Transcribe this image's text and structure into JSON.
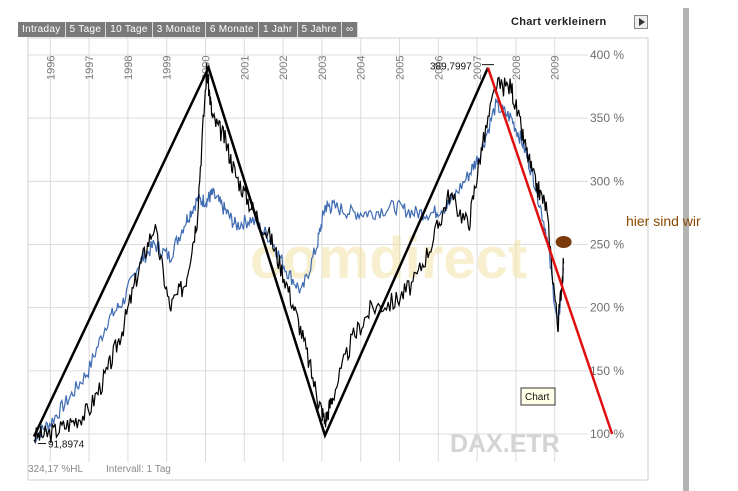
{
  "tabs": [
    "Intraday",
    "5 Tage",
    "10 Tage",
    "3 Monate",
    "6 Monate",
    "1 Jahr",
    "5 Jahre",
    "∞"
  ],
  "header": {
    "shrink_label": "Chart verkleinern"
  },
  "footer": {
    "performance": "324,17 %HL",
    "interval": "Intervall: 1 Tag"
  },
  "watermark": {
    "symbol": "DAX.ETR",
    "brand": "comdirect"
  },
  "tooltip": "Chart",
  "annotation": "hier sind wir",
  "colors": {
    "index_line": "#000000",
    "comparison_line": "#3f6bb2",
    "trend_lines": "#000000",
    "forecast_line": "#e01010",
    "marker": "#7a3a0a",
    "annotation": "#8a4a00"
  },
  "chart_data": {
    "type": "line",
    "x_tick_labels": [
      "1996",
      "1997",
      "1998",
      "1999",
      "2000",
      "2001",
      "2002",
      "2003",
      "2004",
      "2005",
      "2006",
      "2007",
      "2008",
      "2009"
    ],
    "y_tick_labels": [
      "100 %",
      "150 %",
      "200 %",
      "250 %",
      "300 %",
      "350 %",
      "400 %"
    ],
    "ylim": [
      90,
      405
    ],
    "grid": true,
    "extreme_labels": {
      "high": "389,7997",
      "low": "91,8974"
    },
    "series": [
      {
        "style": "black",
        "x": [
          1995.6,
          1996,
          1996.5,
          1997,
          1997.5,
          1997.9,
          1998.3,
          1998.7,
          1999.1,
          1999.5,
          1999.8,
          2000.05,
          2000.2,
          2000.5,
          2000.8,
          2001.2,
          2001.7,
          2002.1,
          2002.5,
          2002.9,
          2003.1,
          2003.3,
          2003.8,
          2004.3,
          2004.9,
          2005.4,
          2005.9,
          2006.3,
          2006.8,
          2007.1,
          2007.5,
          2007.9,
          2008.2,
          2008.5,
          2008.8,
          2009.1,
          2009.25
        ],
        "y": [
          98,
          100,
          108,
          118,
          150,
          185,
          230,
          265,
          200,
          220,
          270,
          388,
          350,
          335,
          305,
          280,
          255,
          220,
          180,
          130,
          110,
          130,
          175,
          200,
          205,
          220,
          255,
          290,
          265,
          320,
          375,
          375,
          335,
          300,
          280,
          185,
          235
        ]
      },
      {
        "style": "blue",
        "x": [
          1995.6,
          1996,
          1996.5,
          1997,
          1997.5,
          1997.9,
          1998.3,
          1998.7,
          1999.1,
          1999.5,
          1999.8,
          2000.05,
          2000.2,
          2000.5,
          2000.8,
          2001.2,
          2001.7,
          2002.1,
          2002.5,
          2002.9,
          2003.1,
          2003.3,
          2003.8,
          2004.3,
          2004.9,
          2005.4,
          2005.9,
          2006.3,
          2006.8,
          2007.1,
          2007.5,
          2007.9,
          2008.2,
          2008.5,
          2008.8,
          2009.1,
          2009.25
        ],
        "y": [
          98,
          108,
          128,
          150,
          190,
          205,
          235,
          250,
          240,
          268,
          285,
          285,
          290,
          278,
          265,
          270,
          255,
          230,
          212,
          250,
          280,
          280,
          275,
          275,
          280,
          275,
          275,
          282,
          305,
          322,
          360,
          350,
          330,
          300,
          260,
          185,
          230
        ]
      },
      {
        "style": "trend",
        "x": [
          1995.6,
          2000.1,
          2003.1,
          2007.3,
          2009.25,
          2010.5
        ],
        "y": [
          98,
          390,
          99,
          390,
          252,
          100
        ]
      }
    ]
  }
}
